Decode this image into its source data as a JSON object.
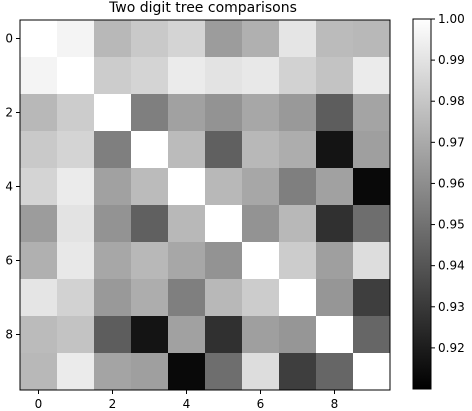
{
  "chart_data": {
    "type": "heatmap",
    "title": "Two digit tree comparisons",
    "xlabel": "",
    "ylabel": "",
    "x_ticks": [
      0,
      2,
      4,
      6,
      8
    ],
    "y_ticks": [
      0,
      2,
      4,
      6,
      8
    ],
    "x_tick_labels": [
      "0",
      "2",
      "4",
      "6",
      "8"
    ],
    "y_tick_labels": [
      "0",
      "2",
      "4",
      "6",
      "8"
    ],
    "colormap": "gray",
    "vmin": 0.91,
    "vmax": 1.0,
    "colorbar": {
      "ticks": [
        0.92,
        0.93,
        0.94,
        0.95,
        0.96,
        0.97,
        0.98,
        0.99,
        1.0
      ],
      "tick_labels": [
        "0.92",
        "0.93",
        "0.94",
        "0.95",
        "0.96",
        "0.97",
        "0.98",
        "0.99",
        "1.00"
      ]
    },
    "matrix": [
      [
        1.0,
        0.996,
        0.975,
        0.981,
        0.985,
        0.965,
        0.972,
        0.991,
        0.976,
        0.975
      ],
      [
        0.996,
        1.0,
        0.982,
        0.985,
        0.993,
        0.99,
        0.992,
        0.984,
        0.979,
        0.993
      ],
      [
        0.975,
        0.982,
        1.0,
        0.955,
        0.967,
        0.962,
        0.969,
        0.964,
        0.943,
        0.968
      ],
      [
        0.981,
        0.985,
        0.955,
        1.0,
        0.976,
        0.944,
        0.975,
        0.971,
        0.917,
        0.966
      ],
      [
        0.985,
        0.993,
        0.967,
        0.976,
        1.0,
        0.975,
        0.969,
        0.955,
        0.967,
        0.913
      ],
      [
        0.965,
        0.99,
        0.962,
        0.944,
        0.975,
        1.0,
        0.962,
        0.975,
        0.927,
        0.949
      ],
      [
        0.972,
        0.992,
        0.969,
        0.975,
        0.969,
        0.962,
        1.0,
        0.982,
        0.966,
        0.988
      ],
      [
        0.991,
        0.984,
        0.964,
        0.971,
        0.955,
        0.975,
        0.982,
        1.0,
        0.963,
        0.932
      ],
      [
        0.976,
        0.979,
        0.943,
        0.917,
        0.967,
        0.927,
        0.966,
        0.963,
        1.0,
        0.946
      ],
      [
        0.975,
        0.993,
        0.968,
        0.966,
        0.913,
        0.949,
        0.988,
        0.932,
        0.946,
        1.0
      ]
    ]
  }
}
